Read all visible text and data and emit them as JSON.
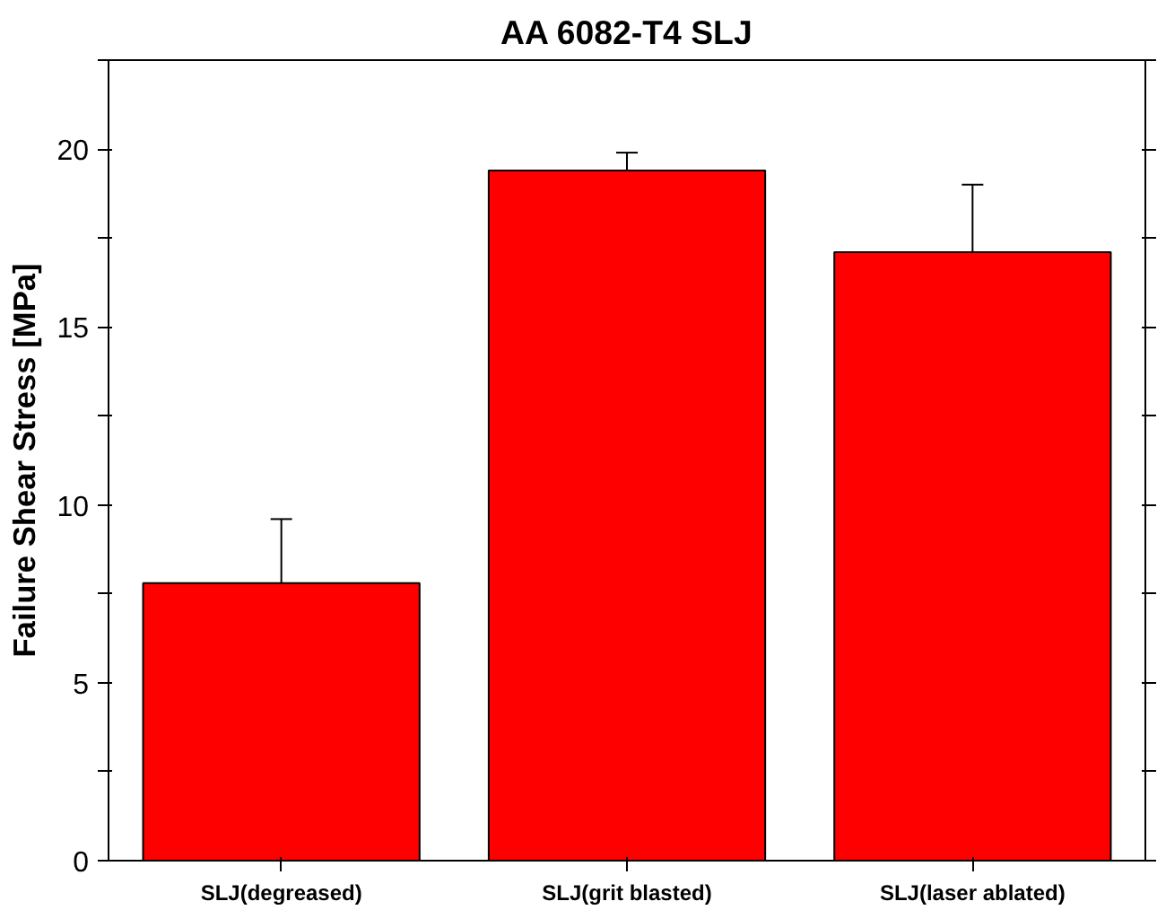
{
  "chart_data": {
    "type": "bar",
    "title": "AA 6082-T4 SLJ",
    "ylabel": "Failure Shear Stress [MPa]",
    "categories": [
      "SLJ(degreased)",
      "SLJ(grit blasted)",
      "SLJ(laser ablated)"
    ],
    "values": [
      7.8,
      19.4,
      17.1
    ],
    "errors": [
      1.8,
      0.5,
      1.9
    ],
    "color": "#ff0000",
    "ylim": [
      0,
      22.5
    ],
    "yticks": [
      0,
      {
        "value": 2.5,
        "label": null
      },
      5,
      {
        "value": 7.5,
        "label": null
      },
      10,
      {
        "value": 12.5,
        "label": null
      },
      15,
      {
        "value": 17.5,
        "label": null
      },
      20,
      {
        "value": 22.5,
        "label": null
      }
    ],
    "grid": false
  }
}
